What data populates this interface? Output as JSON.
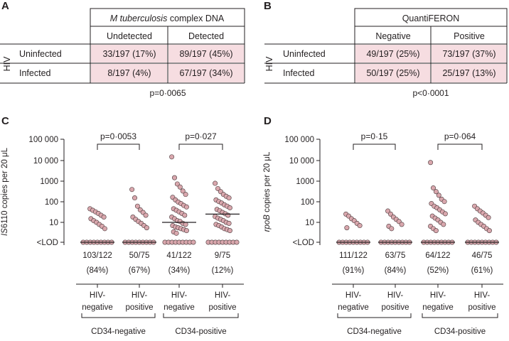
{
  "colors": {
    "cell_fill": "#f6dde1",
    "dot_fill": "#d9a7ad",
    "dot_stroke": "#4a3a3c",
    "line": "#231f20"
  },
  "panel_a": {
    "letter": "A",
    "header_italic": "M tuberculosis",
    "header_rest": " complex DNA",
    "col_labels": [
      "Undetected",
      "Detected"
    ],
    "side_label": "HIV",
    "row_labels": [
      "Uninfected",
      "Infected"
    ],
    "cells": [
      [
        "33/197 (17%)",
        "89/197 (45%)"
      ],
      [
        "8/197 (4%)",
        "67/197 (34%)"
      ]
    ],
    "pvalue": "p=0·0065"
  },
  "panel_b": {
    "letter": "B",
    "header_italic": "",
    "header_rest": "QuantiFERON",
    "col_labels": [
      "Negative",
      "Positive"
    ],
    "side_label": "HIV",
    "row_labels": [
      "Uninfected",
      "Infected"
    ],
    "cells": [
      [
        "49/197 (25%)",
        "73/197 (37%)"
      ],
      [
        "50/197 (25%)",
        "25/197 (13%)"
      ]
    ],
    "pvalue": "p<0·0001"
  },
  "chart_data": [
    {
      "panel": "C",
      "type": "scatter",
      "ylabel_italic": "IS",
      "ylabel_rest": "6110 copies per 20 μL",
      "y_scale": "log",
      "y_tick_labels": [
        "100 000",
        "10 000",
        "1000",
        "100",
        "10",
        "<LOD"
      ],
      "y_tick_values": [
        100000,
        10000,
        1000,
        100,
        10,
        "LOD"
      ],
      "groups": [
        {
          "line1": "HIV-",
          "line2": "negative",
          "count": "103/122",
          "percent": "(84%)",
          "median": "LOD",
          "points": [
            45,
            38,
            32,
            27,
            22,
            18,
            15,
            12,
            10,
            8,
            6.5,
            5
          ]
        },
        {
          "line1": "HIV-",
          "line2": "positive",
          "count": "50/75",
          "percent": "(67%)",
          "median": "LOD",
          "points": [
            380,
            150,
            60,
            40,
            30,
            22,
            18,
            14,
            11,
            9,
            7,
            5.5
          ]
        },
        {
          "line1": "HIV-",
          "line2": "negative",
          "count": "41/122",
          "percent": "(34%)",
          "median": 10,
          "points": [
            14000,
            1400,
            700,
            500,
            320,
            220,
            160,
            120,
            95,
            80,
            65,
            55,
            45,
            38,
            32,
            27,
            22,
            18,
            15,
            12,
            11,
            9,
            8,
            7,
            6,
            5.5,
            5,
            4.5,
            4,
            3.5,
            3
          ]
        },
        {
          "line1": "HIV-",
          "line2": "positive",
          "count": "9/75",
          "percent": "(12%)",
          "median": 25,
          "points": [
            750,
            420,
            300,
            220,
            180,
            150,
            120,
            100,
            85,
            70,
            60,
            50,
            42,
            36,
            30,
            26,
            22,
            19,
            16,
            14,
            12,
            10,
            9,
            8,
            7,
            6,
            5,
            4.5,
            4
          ]
        }
      ],
      "group_labels": [
        "CD34-negative",
        "CD34-positive"
      ],
      "comparisons": [
        "p=0·0053",
        "p=0·027"
      ]
    },
    {
      "panel": "D",
      "type": "scatter",
      "ylabel_italic": "rpoB",
      "ylabel_rest": " copies per 20 μL",
      "y_scale": "log",
      "y_tick_labels": [
        "100 000",
        "10 000",
        "1000",
        "100",
        "10",
        "<LOD"
      ],
      "y_tick_values": [
        100000,
        10000,
        1000,
        100,
        10,
        "LOD"
      ],
      "groups": [
        {
          "line1": "HIV-",
          "line2": "negative",
          "count": "111/122",
          "percent": "(91%)",
          "median": "LOD",
          "points": [
            25,
            20,
            15,
            12,
            9,
            7,
            5.5
          ]
        },
        {
          "line1": "HIV-",
          "line2": "positive",
          "count": "63/75",
          "percent": "(84%)",
          "median": "LOD",
          "points": [
            35,
            25,
            18,
            14,
            11,
            8,
            6.5,
            5
          ]
        },
        {
          "line1": "HIV-",
          "line2": "negative",
          "count": "64/122",
          "percent": "(52%)",
          "median": "LOD",
          "points": [
            7500,
            450,
            300,
            200,
            130,
            100,
            80,
            60,
            50,
            40,
            32,
            26,
            20,
            16,
            13,
            10,
            8,
            6.5,
            5,
            4
          ]
        },
        {
          "line1": "HIV-",
          "line2": "positive",
          "count": "46/75",
          "percent": "(61%)",
          "median": "LOD",
          "points": [
            60,
            45,
            35,
            28,
            22,
            17,
            13,
            10,
            8,
            6.5,
            5,
            4
          ]
        }
      ],
      "group_labels": [
        "CD34-negative",
        "CD34-positive"
      ],
      "comparisons": [
        "p=0·15",
        "p=0·064"
      ]
    }
  ]
}
